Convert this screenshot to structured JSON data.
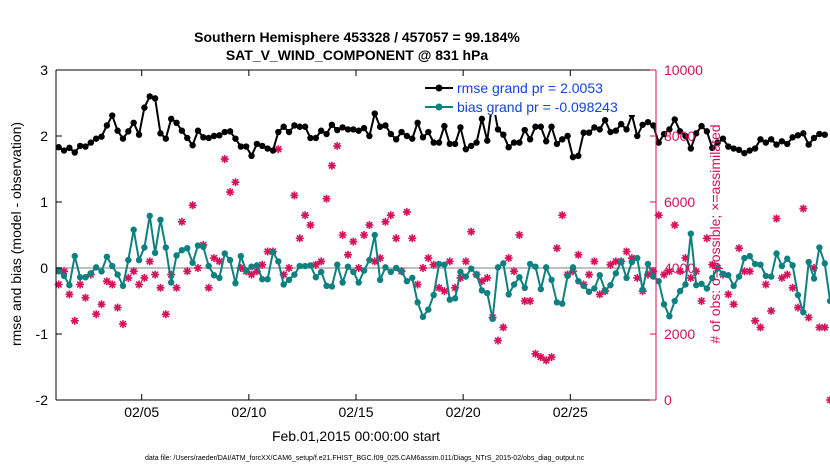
{
  "title_line1": "Southern Hemisphere 453328 / 457057 = 99.184%",
  "title_line2": "SAT_V_WIND_COMPONENT @ 831 hPa",
  "footnote": "data file: /Users/raeder/DAI/ATM_forcXX/CAM6_setup/f.e21.FHIST_BGC.f09_025.CAM6assim.011/Diags_NTrS_2015-02/obs_diag_output.nc",
  "colors": {
    "rmse": "#000000",
    "bias": "#0f8080",
    "obs": "#d6105a",
    "zero_line": "#bfbfbf"
  },
  "chart_data": {
    "type": "line",
    "xlabel": "Feb.01,2015 00:00:00 start",
    "ylabel_left": "rmse and bias (model - observation)",
    "ylabel_right": "# of obs: o=possible; ×=assimilated",
    "xlim": [
      1,
      29
    ],
    "ylim_left": [
      -2,
      3
    ],
    "ylim_right": [
      0,
      10000
    ],
    "x_ticks": [
      {
        "value": 5,
        "label": "02/05"
      },
      {
        "value": 10,
        "label": "02/10"
      },
      {
        "value": 15,
        "label": "02/15"
      },
      {
        "value": 20,
        "label": "02/20"
      },
      {
        "value": 25,
        "label": "02/25"
      }
    ],
    "y_ticks_left": [
      "-2",
      "-1",
      "0",
      "1",
      "2",
      "3"
    ],
    "y_ticks_right": [
      "0",
      "2000",
      "4000",
      "6000",
      "8000",
      "10000"
    ],
    "legend": [
      {
        "label": "rmse grand pr = 2.0053",
        "series": "rmse"
      },
      {
        "label": "bias grand pr = -0.098243",
        "series": "bias"
      }
    ],
    "x_start": 1.125,
    "x_step": 0.25,
    "series": [
      {
        "name": "rmse",
        "axis": "left",
        "values": [
          1.83,
          1.78,
          1.82,
          1.75,
          1.85,
          1.84,
          1.9,
          1.96,
          1.99,
          2.16,
          2.31,
          2.08,
          1.96,
          2.07,
          2.2,
          2.02,
          2.43,
          2.6,
          2.57,
          2.04,
          1.96,
          2.26,
          2.2,
          2.08,
          1.97,
          1.86,
          2.08,
          1.98,
          1.97,
          2.0,
          2.01,
          2.06,
          2.07,
          1.96,
          1.84,
          1.84,
          1.7,
          1.88,
          1.85,
          1.81,
          1.78,
          2.06,
          2.14,
          2.06,
          2.16,
          2.14,
          2.14,
          1.97,
          1.97,
          2.08,
          2.03,
          2.17,
          2.09,
          2.13,
          2.1,
          2.1,
          2.08,
          2.12,
          2.0,
          2.34,
          2.14,
          2.16,
          2.03,
          1.95,
          2.06,
          2.0,
          1.96,
          2.2,
          1.98,
          2.06,
          1.9,
          1.9,
          2.15,
          1.88,
          1.88,
          2.13,
          1.8,
          1.85,
          1.9,
          2.26,
          1.93,
          2.54,
          2.1,
          2.02,
          1.83,
          1.9,
          1.9,
          2.09,
          1.95,
          2.14,
          2.14,
          1.92,
          2.14,
          1.88,
          1.95,
          2.0,
          1.68,
          1.7,
          2.05,
          2.05,
          2.13,
          2.1,
          2.24,
          2.06,
          2.08,
          2.18,
          2.1,
          2.32,
          2.0,
          2.17,
          2.21,
          2.16,
          1.9,
          2.03,
          2.1,
          2.25,
          2.07,
          2.0,
          1.81,
          2.04,
          2.15,
          2.07,
          1.82,
          1.9,
          1.96,
          1.84,
          1.81,
          1.79,
          1.74,
          1.78,
          1.81,
          1.95,
          1.9,
          1.95,
          1.87,
          1.92,
          1.88,
          1.98,
          2.01,
          2.04,
          1.87,
          1.97,
          2.03,
          2.02
        ]
      },
      {
        "name": "bias",
        "axis": "left",
        "values": [
          -0.05,
          -0.12,
          -0.26,
          0.18,
          -0.14,
          -0.14,
          -0.08,
          0.01,
          -0.05,
          0.17,
          0.03,
          -0.1,
          -0.27,
          0.12,
          0.58,
          0.12,
          0.31,
          0.79,
          0.23,
          0.73,
          0.31,
          -0.22,
          0.19,
          0.27,
          0.3,
          0.08,
          0.34,
          0.32,
          0.03,
          -0.11,
          -0.15,
          0.22,
          0.12,
          -0.23,
          0.18,
          -0.04,
          0.02,
          0.04,
          -0.17,
          -0.17,
          0.24,
          0.1,
          -0.25,
          -0.18,
          -0.1,
          0.03,
          0.03,
          0.04,
          -0.14,
          -0.06,
          -0.27,
          -0.28,
          0.05,
          -0.22,
          0.02,
          -0.06,
          -0.22,
          -0.04,
          0.12,
          0.5,
          -0.18,
          0.01,
          -0.06,
          0.0,
          -0.05,
          -0.2,
          -0.15,
          -0.52,
          -0.74,
          -0.63,
          -0.41,
          0.06,
          0.05,
          -0.48,
          -0.46,
          -0.06,
          -0.13,
          -0.01,
          -0.1,
          -0.34,
          -0.38,
          -0.77,
          0.01,
          0.07,
          -0.4,
          -0.25,
          -0.14,
          -0.3,
          0.06,
          0.02,
          -0.32,
          0.01,
          -0.18,
          -0.52,
          -0.54,
          -0.12,
          0.01,
          -0.2,
          -0.27,
          -0.36,
          -0.31,
          -0.11,
          -0.34,
          -0.26,
          -0.08,
          0.1,
          -0.15,
          0.09,
          0.15,
          -0.33,
          0.06,
          -0.13,
          -0.2,
          -0.55,
          -0.73,
          -0.5,
          -0.35,
          -0.25,
          0.52,
          -0.26,
          -0.24,
          -0.31,
          -0.15,
          0.0,
          -0.09,
          -0.11,
          -0.27,
          -0.13,
          0.15,
          0.18,
          0.06,
          0.05,
          -0.12,
          -0.13,
          0.22,
          0.03,
          0.14,
          0.04,
          -0.41,
          -0.67,
          0.09,
          -0.16,
          0.31,
          0.07,
          -0.5
        ]
      },
      {
        "name": "obs_count",
        "axis": "right",
        "marker": "star",
        "values": [
          3500,
          3900,
          3200,
          2400,
          3500,
          3100,
          3800,
          2600,
          2900,
          3600,
          3500,
          2800,
          2300,
          3700,
          3900,
          3500,
          3700,
          4200,
          3800,
          3400,
          2600,
          3800,
          3400,
          5400,
          3900,
          5900,
          4000,
          4700,
          3400,
          4300,
          4200,
          7300,
          6300,
          6600,
          4000,
          3900,
          3800,
          3900,
          4100,
          4500,
          4500,
          7600,
          3800,
          4000,
          6200,
          4900,
          5600,
          5300,
          4100,
          4200,
          6100,
          7100,
          7700,
          5000,
          4400,
          4800,
          4000,
          5000,
          5300,
          4200,
          4300,
          5400,
          5600,
          4900,
          3900,
          5700,
          4900,
          3500,
          4000,
          4300,
          4100,
          3400,
          3300,
          4200,
          3400,
          3700,
          4200,
          5100,
          3800,
          3600,
          3700,
          2500,
          1800,
          2200,
          4300,
          3900,
          5000,
          3000,
          3000,
          1400,
          1300,
          1200,
          1300,
          4600,
          5600,
          3800,
          3900,
          4400,
          3500,
          3800,
          4200,
          3200,
          3300,
          4100,
          4200,
          4200,
          4500,
          4300,
          3700,
          3300,
          3800,
          3900,
          5600,
          3800,
          3900,
          5300,
          3900,
          4300,
          3700,
          3900,
          3000,
          4900,
          4100,
          4000,
          3800,
          3200,
          2900,
          4600,
          3900,
          3900,
          2400,
          2200,
          3500,
          2700,
          5500,
          3700,
          3800,
          3400,
          2800,
          5800,
          2500,
          4000,
          2200,
          2200,
          0
        ]
      }
    ]
  }
}
